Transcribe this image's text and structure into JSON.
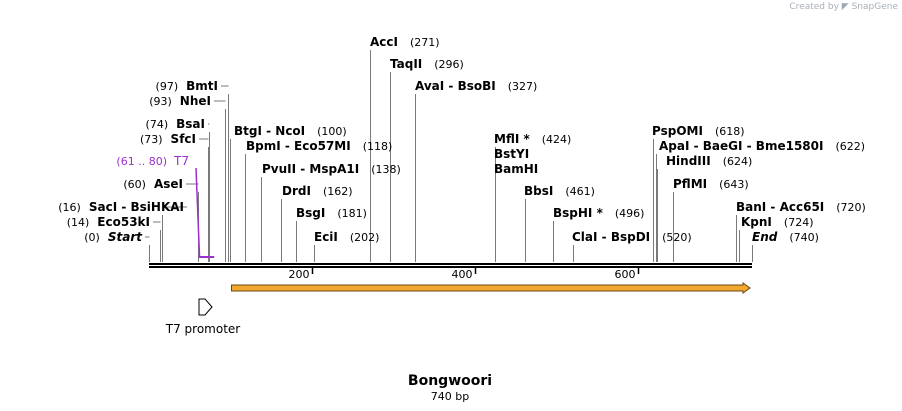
{
  "credit": {
    "prefix": "Created by",
    "brand": "SnapGene"
  },
  "map": {
    "name": "Bongwoori",
    "length_label": "740 bp",
    "length": 740,
    "ticks": [
      {
        "pos": 200,
        "label": "200"
      },
      {
        "pos": 400,
        "label": "400"
      },
      {
        "pos": 600,
        "label": "600"
      }
    ],
    "enzymes": [
      {
        "id": "start",
        "label": "Start",
        "italic": true,
        "pos": 0,
        "pos_label": "(0)"
      },
      {
        "id": "eco53ki",
        "label": "Eco53kI",
        "pos": 14,
        "pos_label": "(14)"
      },
      {
        "id": "saci",
        "label": "SacI  -  BsiHKAI",
        "pos": 16,
        "pos_label": "(16)"
      },
      {
        "id": "asei",
        "label": "AseI",
        "pos": 60,
        "pos_label": "(60)"
      },
      {
        "id": "sfci",
        "label": "SfcI",
        "pos": 73,
        "pos_label": "(73)"
      },
      {
        "id": "bsai",
        "label": "BsaI",
        "pos": 74,
        "pos_label": "(74)"
      },
      {
        "id": "nhei",
        "label": "NheI",
        "pos": 93,
        "pos_label": "(93)"
      },
      {
        "id": "bmti",
        "label": "BmtI",
        "pos": 97,
        "pos_label": "(97)"
      },
      {
        "id": "btgi",
        "label": "BtgI  -  NcoI",
        "pos": 100,
        "pos_label": "(100)"
      },
      {
        "id": "bpmi",
        "label": "BpmI  -  Eco57MI",
        "pos": 118,
        "pos_label": "(118)"
      },
      {
        "id": "pvuii",
        "label": "PvuII  -  MspA1I",
        "pos": 138,
        "pos_label": "(138)"
      },
      {
        "id": "drdi",
        "label": "DrdI",
        "pos": 162,
        "pos_label": "(162)"
      },
      {
        "id": "bsgi",
        "label": "BsgI",
        "pos": 181,
        "pos_label": "(181)"
      },
      {
        "id": "ecii",
        "label": "EciI",
        "pos": 202,
        "pos_label": "(202)"
      },
      {
        "id": "acci",
        "label": "AccI",
        "pos": 271,
        "pos_label": "(271)"
      },
      {
        "id": "taqii",
        "label": "TaqII",
        "pos": 296,
        "pos_label": "(296)"
      },
      {
        "id": "avai",
        "label": "AvaI  -  BsoBI",
        "pos": 327,
        "pos_label": "(327)"
      },
      {
        "id": "mfli",
        "label": "MflI *",
        "pos": 424,
        "pos_label": "(424)"
      },
      {
        "id": "bstyi",
        "label": "BstYI",
        "pos": 424,
        "pos_label": ""
      },
      {
        "id": "bamhi",
        "label": "BamHI",
        "pos": 424,
        "pos_label": ""
      },
      {
        "id": "bbsi",
        "label": "BbsI",
        "pos": 461,
        "pos_label": "(461)"
      },
      {
        "id": "bsphi",
        "label": "BspHI *",
        "pos": 496,
        "pos_label": "(496)"
      },
      {
        "id": "clai",
        "label": "ClaI  -  BspDI",
        "pos": 520,
        "pos_label": "(520)"
      },
      {
        "id": "pspomi",
        "label": "PspOMI",
        "pos": 618,
        "pos_label": "(618)"
      },
      {
        "id": "apai",
        "label": "ApaI  -  BaeGI  -  Bme1580I",
        "pos": 622,
        "pos_label": "(622)"
      },
      {
        "id": "hindiii",
        "label": "HindIII",
        "pos": 624,
        "pos_label": "(624)"
      },
      {
        "id": "pflmi",
        "label": "PflMI",
        "pos": 643,
        "pos_label": "(643)"
      },
      {
        "id": "bani",
        "label": "BanI  -  Acc65I",
        "pos": 720,
        "pos_label": "(720)"
      },
      {
        "id": "kpni",
        "label": "KpnI",
        "pos": 724,
        "pos_label": "(724)"
      },
      {
        "id": "end",
        "label": "End",
        "italic": true,
        "pos": 740,
        "pos_label": "(740)"
      }
    ],
    "primer": {
      "label": "T7",
      "range_label": "(61 .. 80)",
      "start": 61,
      "end": 80,
      "color": "#9b30d0"
    },
    "features": [
      {
        "id": "orf",
        "start": 100,
        "end": 740,
        "direction": "forward",
        "color": "#f0a830",
        "outline": "#6b4a10"
      },
      {
        "id": "t7-promoter",
        "label": "T7 promoter",
        "start": 61,
        "end": 80,
        "direction": "forward",
        "color": "#ffffff"
      }
    ]
  }
}
